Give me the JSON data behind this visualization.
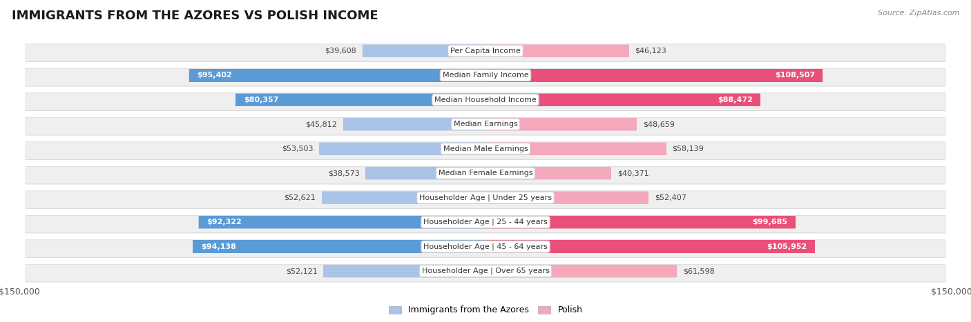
{
  "title": "IMMIGRANTS FROM THE AZORES VS POLISH INCOME",
  "source": "Source: ZipAtlas.com",
  "categories": [
    "Per Capita Income",
    "Median Family Income",
    "Median Household Income",
    "Median Earnings",
    "Median Male Earnings",
    "Median Female Earnings",
    "Householder Age | Under 25 years",
    "Householder Age | 25 - 44 years",
    "Householder Age | 45 - 64 years",
    "Householder Age | Over 65 years"
  ],
  "azores_values": [
    39608,
    95402,
    80357,
    45812,
    53503,
    38573,
    52621,
    92322,
    94138,
    52121
  ],
  "polish_values": [
    46123,
    108507,
    88472,
    48659,
    58139,
    40371,
    52407,
    99685,
    105952,
    61598
  ],
  "azores_labels": [
    "$39,608",
    "$95,402",
    "$80,357",
    "$45,812",
    "$53,503",
    "$38,573",
    "$52,621",
    "$92,322",
    "$94,138",
    "$52,121"
  ],
  "polish_labels": [
    "$46,123",
    "$108,507",
    "$88,472",
    "$48,659",
    "$58,139",
    "$40,371",
    "$52,407",
    "$99,685",
    "$105,952",
    "$61,598"
  ],
  "azores_color_light": "#aac4e8",
  "azores_color_dark": "#5b9bd5",
  "polish_color_light": "#f4a8bc",
  "polish_color_dark": "#e8507a",
  "large_threshold": 65000,
  "max_value": 150000,
  "row_bg_color": "#efefef",
  "row_border_color": "#d8d8d8",
  "figure_bg": "#ffffff",
  "legend_azores": "Immigrants from the Azores",
  "legend_polish": "Polish",
  "title_fontsize": 13,
  "label_fontsize": 8,
  "value_fontsize": 8
}
